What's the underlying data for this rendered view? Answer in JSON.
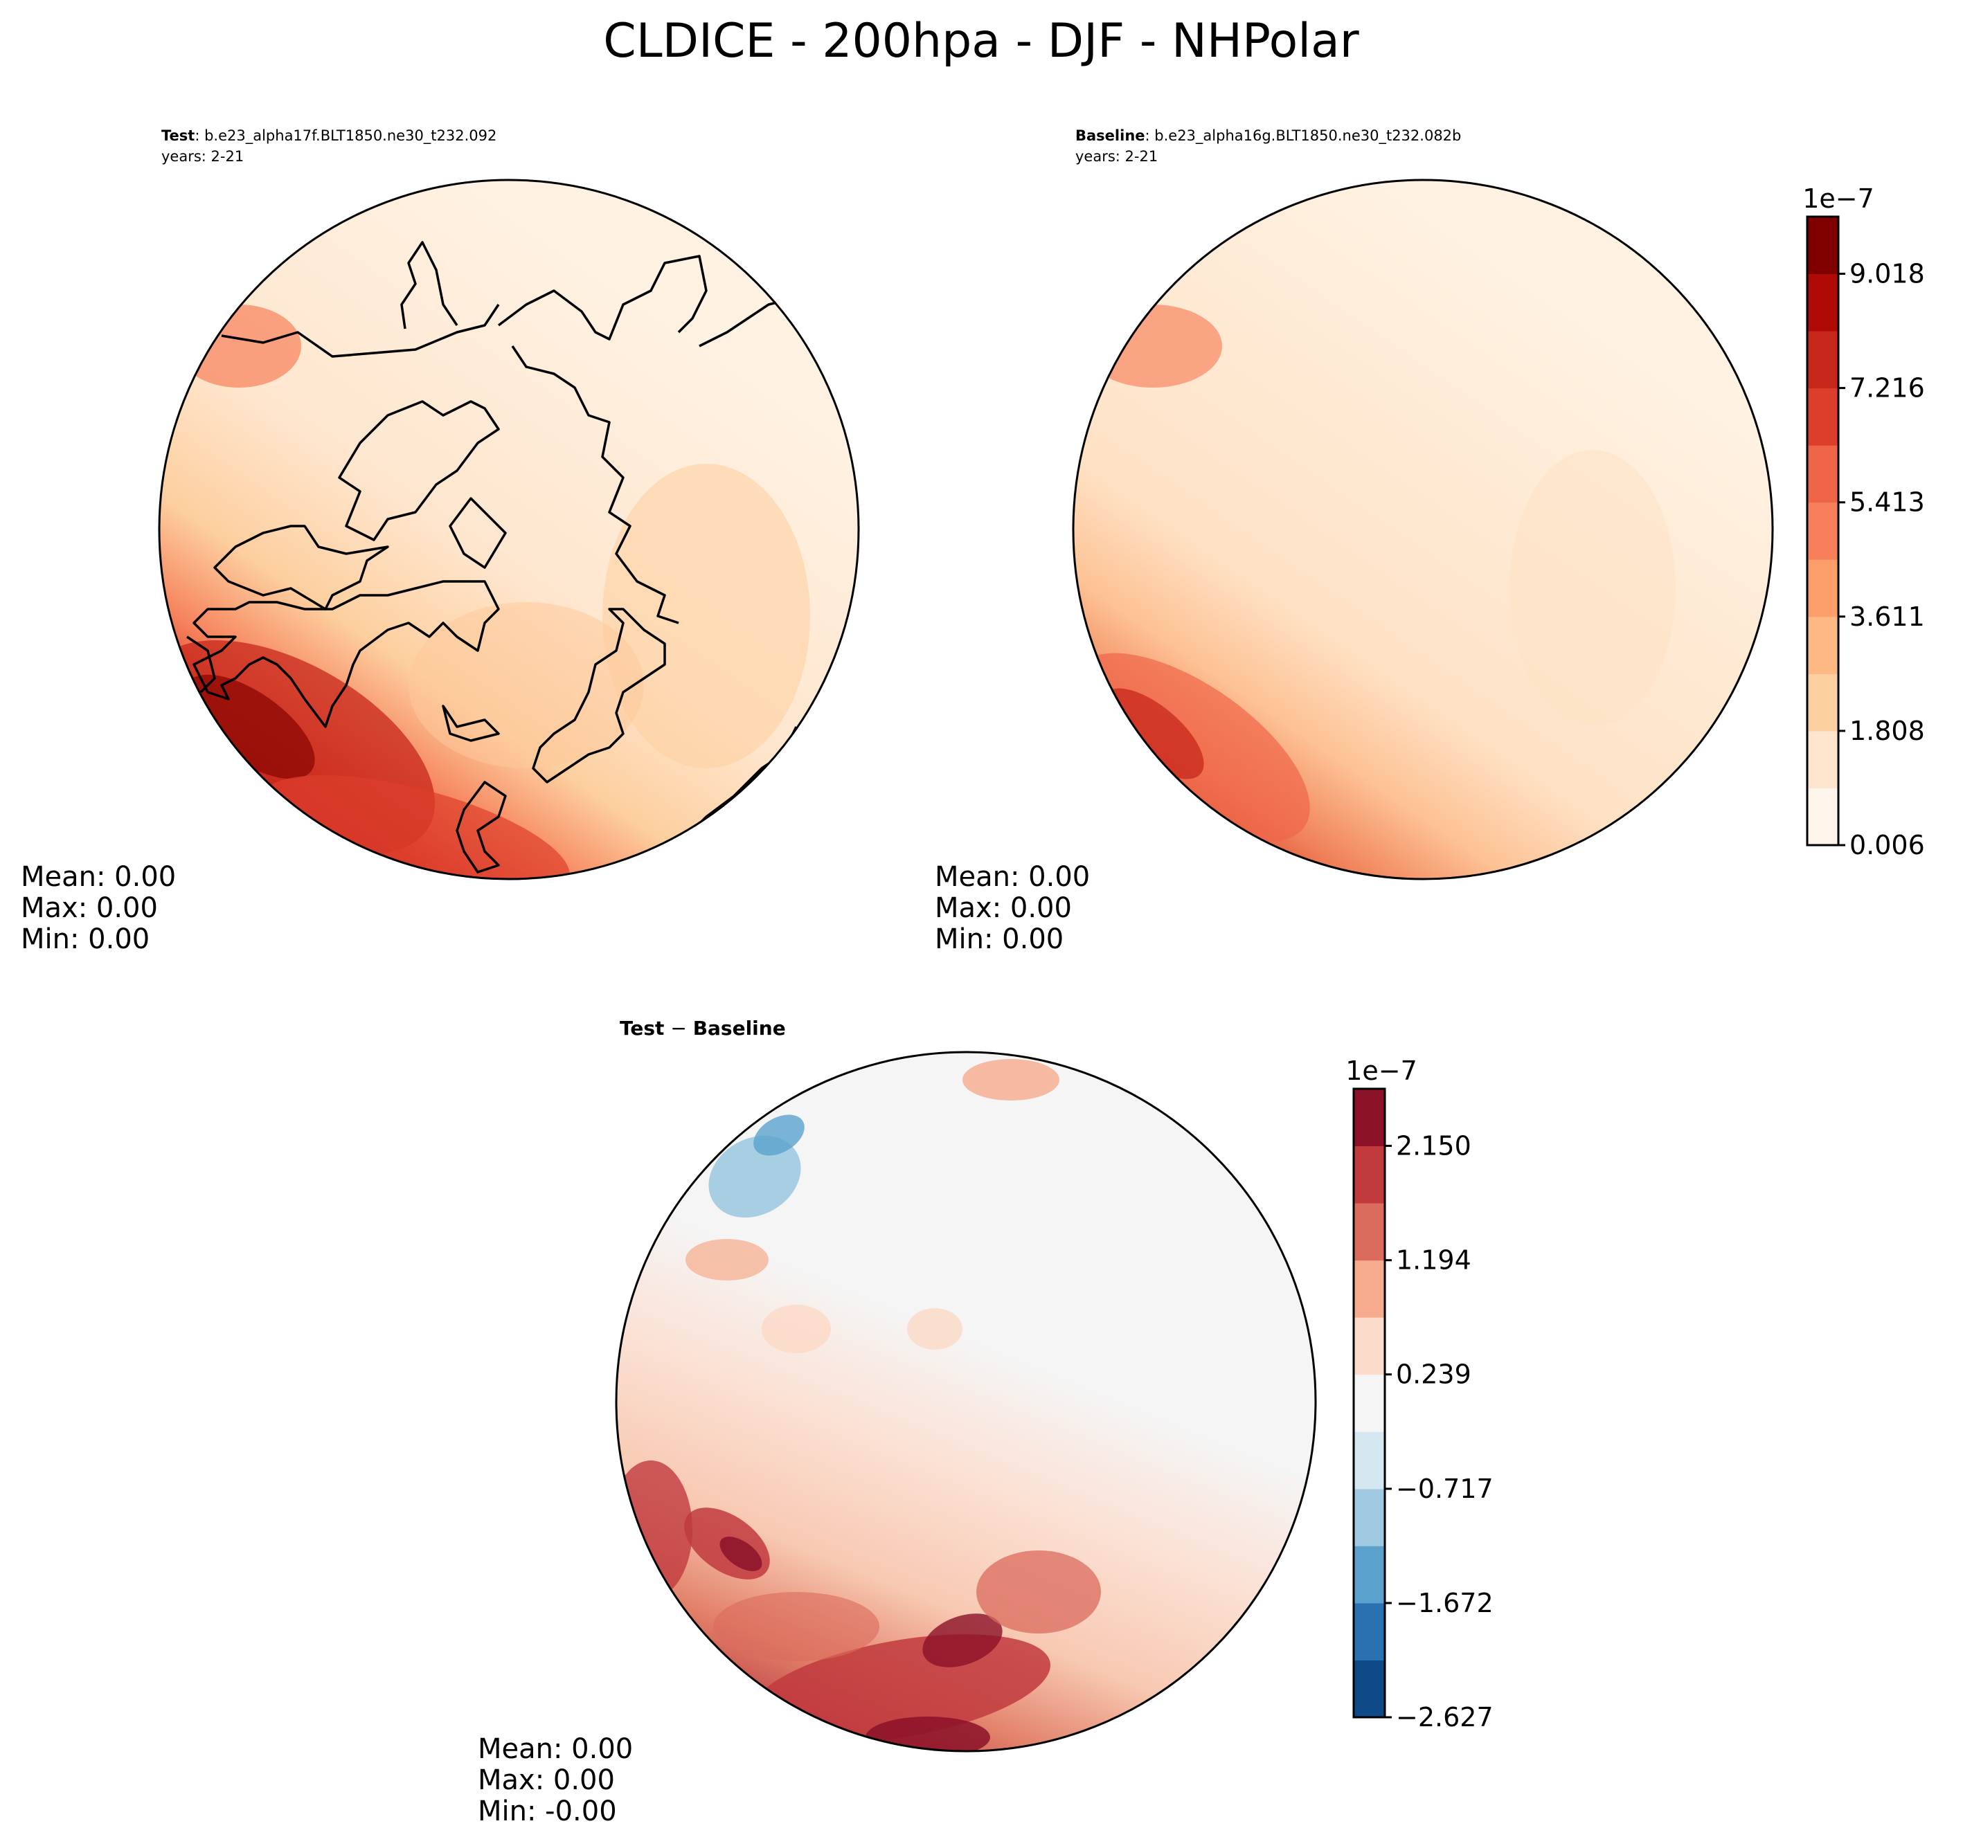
{
  "figure": {
    "title": "CLDICE - 200hpa - DJF - NHPolar"
  },
  "chart_data": [
    {
      "type": "contour-map",
      "projection": "north-polar-stereographic",
      "title_bold": "Test",
      "title_rest": ": b.e23_alpha17f.BLT1850.ne30_t232.092",
      "subtitle": "years: 2-21",
      "stats": [
        "Mean:  0.00",
        "Max:  0.00",
        "Min:  0.00"
      ],
      "colormap": "reds"
    },
    {
      "type": "contour-map",
      "projection": "north-polar-stereographic",
      "title_bold": "Baseline",
      "title_rest": ": b.e23_alpha16g.BLT1850.ne30_t232.082b",
      "subtitle": "years: 2-21",
      "stats": [
        "Mean:  0.00",
        "Max:  0.00",
        "Min:  0.00"
      ],
      "colormap": "reds",
      "colorbar": {
        "exponent": "1e−7",
        "tick_labels": [
          "0.006",
          "1.808",
          "3.611",
          "5.413",
          "7.216",
          "9.018"
        ],
        "levels": [
          0.006,
          0.907,
          1.808,
          2.709,
          3.611,
          4.512,
          5.413,
          6.314,
          7.216,
          8.117,
          9.018,
          9.919
        ],
        "colors": [
          "#fff5eb",
          "#fee6ce",
          "#fdd0a2",
          "#fdb884",
          "#fc9e69",
          "#f7805a",
          "#ef6548",
          "#dd3e2c",
          "#c7271b",
          "#af0a05",
          "#800000"
        ]
      }
    },
    {
      "type": "contour-map",
      "projection": "north-polar-stereographic",
      "title_bold": "Test",
      "title_op": " − ",
      "title_bold2": "Baseline",
      "stats": [
        "Mean:  0.00",
        "Max:  0.00",
        "Min: -0.00"
      ],
      "colormap": "diverging-blue-red",
      "colorbar": {
        "exponent": "1e−7",
        "tick_labels": [
          "−2.627",
          "−1.672",
          "−0.717",
          "0.239",
          "1.194",
          "2.150"
        ],
        "levels": [
          -2.627,
          -2.149,
          -1.672,
          -1.194,
          -0.717,
          -0.239,
          0.239,
          0.717,
          1.194,
          1.672,
          2.15,
          2.627
        ],
        "colors": [
          "#0d4a87",
          "#2a71b2",
          "#5aa2cd",
          "#a0cae1",
          "#d5e7f1",
          "#f5f5f5",
          "#fbdbca",
          "#f5ab8c",
          "#db6b5c",
          "#c13a3e",
          "#8b1228"
        ]
      }
    }
  ]
}
